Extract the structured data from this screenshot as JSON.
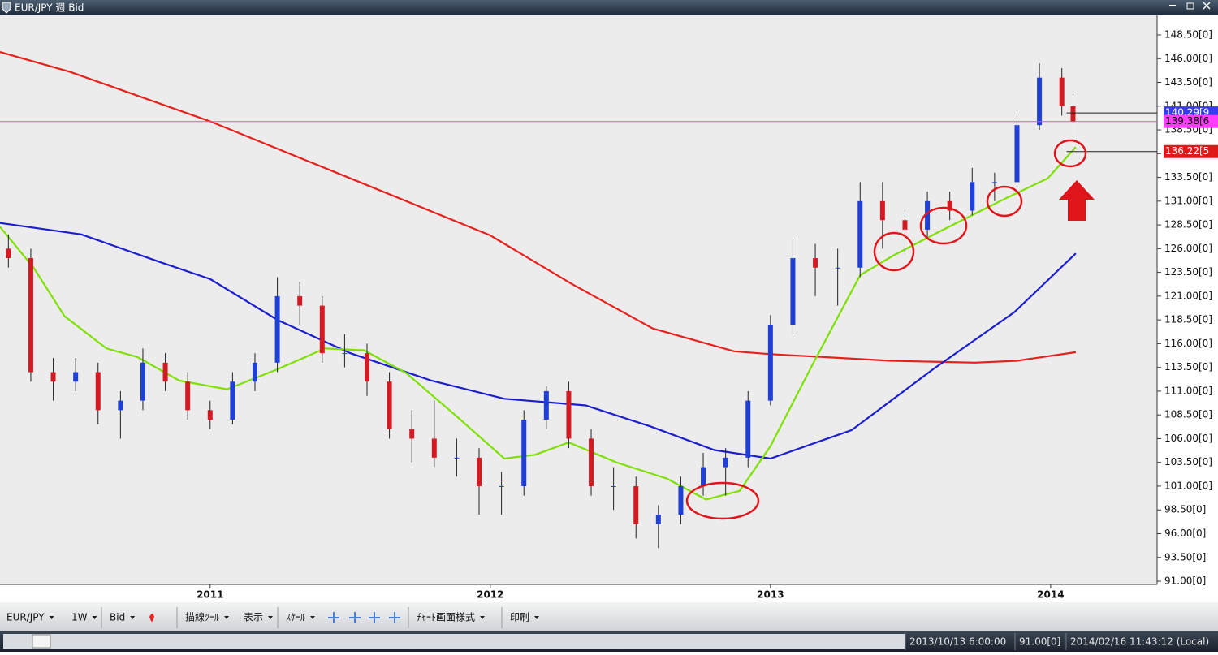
{
  "window": {
    "title": "EUR/JPY 週 Bid"
  },
  "chart_data": {
    "type": "candlestick",
    "up_color": "#1f3fd6",
    "down_color": "#d41a22",
    "xlim": [
      2010.25,
      2014.38
    ],
    "xticks": [
      2011,
      2012,
      2013,
      2014
    ],
    "ylim": [
      90.66,
      150.55
    ],
    "yticks": [
      {
        "value": 148.5,
        "label": "148.50[0]"
      },
      {
        "value": 146,
        "label": "146.00[0]"
      },
      {
        "value": 143.5,
        "label": "143.50[0]"
      },
      {
        "value": 141,
        "label": "141.00[0]"
      },
      {
        "value": 138.5,
        "label": "138.50[0]"
      },
      {
        "value": 136,
        "label": "136.00[0]"
      },
      {
        "value": 133.5,
        "label": "133.50[0]"
      },
      {
        "value": 131,
        "label": "131.00[0]"
      },
      {
        "value": 128.5,
        "label": "128.50[0]"
      },
      {
        "value": 126,
        "label": "126.00[0]"
      },
      {
        "value": 123.5,
        "label": "123.50[0]"
      },
      {
        "value": 121,
        "label": "121.00[0]"
      },
      {
        "value": 118.5,
        "label": "118.50[0]"
      },
      {
        "value": 116,
        "label": "116.00[0]"
      },
      {
        "value": 113.5,
        "label": "113.50[0]"
      },
      {
        "value": 111,
        "label": "111.00[0]"
      },
      {
        "value": 108.5,
        "label": "108.50[0]"
      },
      {
        "value": 106,
        "label": "106.00[0]"
      },
      {
        "value": 103.5,
        "label": "103.50[0]"
      },
      {
        "value": 101,
        "label": "101.00[0]"
      },
      {
        "value": 98.5,
        "label": "98.50[0]"
      },
      {
        "value": 96,
        "label": "96.00[0]"
      },
      {
        "value": 93.5,
        "label": "93.50[0]"
      },
      {
        "value": 91,
        "label": "91.00[0]"
      }
    ],
    "candles": {
      "x": [
        2010.28,
        2010.36,
        2010.44,
        2010.52,
        2010.6,
        2010.68,
        2010.76,
        2010.84,
        2010.92,
        2011.0,
        2011.08,
        2011.16,
        2011.24,
        2011.32,
        2011.4,
        2011.48,
        2011.56,
        2011.64,
        2011.72,
        2011.8,
        2011.88,
        2011.96,
        2012.04,
        2012.12,
        2012.2,
        2012.28,
        2012.36,
        2012.44,
        2012.52,
        2012.6,
        2012.68,
        2012.76,
        2012.84,
        2012.92,
        2013.0,
        2013.08,
        2013.16,
        2013.24,
        2013.32,
        2013.4,
        2013.48,
        2013.56,
        2013.64,
        2013.72,
        2013.8,
        2013.88,
        2013.96,
        2014.04,
        2014.08
      ],
      "open": [
        126,
        125,
        113,
        112,
        113,
        109,
        110,
        114,
        112,
        109,
        108,
        112,
        114,
        121,
        120,
        115,
        115,
        112,
        107,
        106,
        104,
        104,
        101,
        101,
        108,
        111,
        106,
        101,
        101,
        97,
        98,
        101,
        103,
        104,
        110,
        118,
        125,
        124,
        124,
        131,
        129,
        128,
        131,
        130,
        133,
        133,
        139,
        144,
        141
      ],
      "high": [
        127.5,
        126,
        114.5,
        114.5,
        114,
        111,
        115.5,
        115,
        113,
        110,
        113,
        115,
        123,
        122.5,
        121,
        117,
        116,
        113,
        109,
        110,
        106,
        105,
        102.5,
        109,
        111.5,
        112,
        107,
        103,
        102,
        99,
        102,
        104.5,
        105,
        111,
        119,
        127,
        126.5,
        126,
        133,
        133,
        130,
        132,
        132,
        134.5,
        134,
        140,
        145.5,
        145,
        142
      ],
      "low": [
        124,
        112,
        110,
        111,
        107.5,
        106,
        109,
        111,
        108,
        107,
        107.5,
        111,
        113,
        118,
        114,
        113.5,
        110.5,
        106,
        103.5,
        103,
        102,
        98,
        98,
        100,
        107,
        105,
        100,
        98.5,
        95.5,
        94.5,
        97,
        100,
        100,
        103,
        109.5,
        117,
        121,
        120,
        123,
        126,
        125.5,
        127,
        129,
        129.5,
        131,
        132.5,
        138.5,
        140,
        136.22
      ],
      "close": [
        125,
        113,
        112,
        113,
        109,
        110,
        114,
        112,
        109,
        108,
        112,
        114,
        121,
        120,
        115,
        115,
        112,
        107,
        106,
        104,
        104,
        101,
        101,
        108,
        111,
        106,
        101,
        101,
        97,
        98,
        101,
        103,
        104,
        110,
        118,
        125,
        124,
        124,
        131,
        129,
        128,
        131,
        130,
        133,
        133,
        139,
        144,
        141,
        139.38
      ]
    },
    "lines": [
      {
        "color": "#e8201c",
        "x": [
          2010.25,
          2010.5,
          2011.0,
          2011.5,
          2012.0,
          2012.29,
          2012.58,
          2012.87,
          2013.0,
          2013.43,
          2013.73,
          2013.88,
          2014.09
        ],
        "values": [
          146.7,
          144.6,
          139.4,
          133.4,
          127.4,
          122.3,
          117.6,
          115.2,
          114.9,
          114.2,
          114.0,
          114.2,
          115.1
        ]
      },
      {
        "color": "#1a1ed0",
        "x": [
          2010.25,
          2010.54,
          2010.83,
          2011.0,
          2011.24,
          2011.5,
          2011.79,
          2012.05,
          2012.34,
          2012.57,
          2012.8,
          2013.0,
          2013.29,
          2013.58,
          2013.87,
          2014.09
        ],
        "values": [
          128.7,
          127.5,
          124.5,
          122.8,
          118.5,
          115.0,
          112.1,
          110.2,
          109.5,
          107.3,
          104.8,
          103.9,
          106.9,
          113.3,
          119.3,
          125.5
        ]
      },
      {
        "color": "#7fe000",
        "x": [
          2010.25,
          2010.37,
          2010.48,
          2010.63,
          2010.74,
          2010.89,
          2011.06,
          2011.24,
          2011.41,
          2011.55,
          2011.7,
          2011.87,
          2012.05,
          2012.16,
          2012.28,
          2012.45,
          2012.63,
          2012.77,
          2012.89,
          2013.0,
          2013.15,
          2013.32,
          2013.44,
          2013.61,
          2013.84,
          2013.99,
          2014.09
        ],
        "values": [
          128.3,
          124.0,
          118.9,
          115.5,
          114.6,
          112.1,
          111.2,
          113.3,
          115.5,
          115.3,
          112.9,
          108.6,
          103.9,
          104.3,
          105.6,
          103.5,
          101.8,
          99.6,
          100.5,
          105.2,
          113.8,
          123.2,
          125.3,
          127.9,
          131.3,
          133.4,
          136.7
        ]
      }
    ],
    "price_tags": [
      {
        "value": 140.29,
        "label": "140.29[9",
        "color": "#3a3af0",
        "text_color": "#ffffff",
        "line": false
      },
      {
        "value": 139.38,
        "label": "139.38[6",
        "color": "#ff3cff",
        "text_color": "#000000",
        "line": true
      },
      {
        "value": 136.22,
        "label": "136.22[5",
        "color": "#e01818",
        "text_color": "#ffffff",
        "line": false
      }
    ]
  },
  "toolbar": {
    "items": [
      "EUR/JPY",
      "1W",
      "Bid",
      "描線ﾂｰﾙ",
      "表示",
      "ｽｹｰﾙ",
      "ﾁｬｰﾄ画面様式",
      "印刷"
    ]
  },
  "status_bar": {
    "items": [
      "2013/10/13 6:00:00",
      "91.00[0]",
      "2014/02/16 11:43:12 (Local)"
    ]
  }
}
